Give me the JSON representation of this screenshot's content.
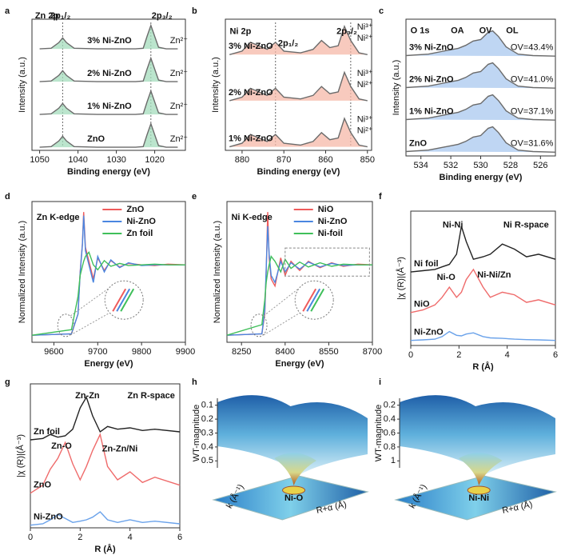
{
  "chart_data": [
    {
      "type": "line",
      "panel": "a",
      "xlabel": "Binding energy (eV)",
      "ylabel": "Intensity (a.u.)",
      "xlim": [
        1052,
        1012
      ],
      "xticks": [
        1050,
        1040,
        1030,
        1020
      ],
      "ylim": [
        0,
        4.2
      ],
      "reference_lines": [
        1044,
        1021
      ],
      "series_labels": "middle",
      "fill_color": "#a4dcbc",
      "x": [
        1050,
        1047,
        1045,
        1044,
        1043,
        1041,
        1035,
        1030,
        1025,
        1023,
        1022,
        1021,
        1020,
        1019,
        1017,
        1014
      ],
      "series": [
        {
          "name": "3% Ni-ZnO",
          "color": "#6b6b6b",
          "tags": [
            "Zn²⁺"
          ],
          "values": [
            3.25,
            3.27,
            3.45,
            3.6,
            3.45,
            3.27,
            3.25,
            3.25,
            3.25,
            3.27,
            3.65,
            4.0,
            3.65,
            3.3,
            3.25,
            3.25
          ]
        },
        {
          "name": "2% Ni-ZnO",
          "color": "#6b6b6b",
          "tags": [
            "Zn²⁺"
          ],
          "values": [
            2.2,
            2.22,
            2.4,
            2.55,
            2.4,
            2.22,
            2.2,
            2.2,
            2.2,
            2.22,
            2.6,
            2.95,
            2.6,
            2.25,
            2.2,
            2.2
          ]
        },
        {
          "name": "1% Ni-ZnO",
          "color": "#6b6b6b",
          "tags": [
            "Zn²⁺"
          ],
          "values": [
            1.15,
            1.17,
            1.35,
            1.5,
            1.35,
            1.17,
            1.15,
            1.15,
            1.15,
            1.17,
            1.55,
            1.9,
            1.55,
            1.2,
            1.15,
            1.15
          ]
        },
        {
          "name": "ZnO",
          "color": "#6b6b6b",
          "tags": [
            "Zn²⁺"
          ],
          "values": [
            0.1,
            0.12,
            0.3,
            0.45,
            0.3,
            0.12,
            0.1,
            0.1,
            0.1,
            0.12,
            0.5,
            0.85,
            0.5,
            0.15,
            0.1,
            0.1
          ]
        }
      ],
      "tag_color": "#4a7fd4",
      "annotations": [
        {
          "text": "Zn 2p",
          "color": "#000000"
        },
        {
          "text": "2p₁/₂",
          "color": "#000000"
        },
        {
          "text": "2p₃/₂",
          "color": "#000000"
        }
      ]
    },
    {
      "type": "line",
      "panel": "b",
      "xlabel": "Binding energy (eV)",
      "ylabel": "Intensity (a.u.)",
      "xlim": [
        884,
        849
      ],
      "xticks": [
        880,
        870,
        860,
        850
      ],
      "ylim": [
        0,
        3.7
      ],
      "reference_lines": [
        872,
        854
      ],
      "series_labels": "left",
      "fill_color": "#f5b8a8",
      "x": [
        883,
        880,
        878,
        876,
        874,
        872,
        870,
        866,
        863,
        861,
        859,
        857,
        855.5,
        854,
        852,
        850
      ],
      "series": [
        {
          "name": "3% Ni-ZnO",
          "color": "#6b6b6b",
          "tags": [
            "Ni³⁺",
            "Ni²⁺"
          ],
          "values": [
            2.7,
            2.8,
            3.05,
            2.95,
            2.85,
            3.05,
            2.8,
            2.75,
            2.85,
            3.1,
            2.9,
            2.95,
            3.5,
            3.1,
            2.75,
            2.7
          ]
        },
        {
          "name": "2% Ni-ZnO",
          "color": "#6b6b6b",
          "tags": [
            "Ni³⁺",
            "Ni²⁺"
          ],
          "values": [
            1.4,
            1.5,
            1.75,
            1.65,
            1.55,
            1.75,
            1.5,
            1.45,
            1.55,
            1.8,
            1.6,
            1.65,
            2.2,
            1.8,
            1.45,
            1.4
          ]
        },
        {
          "name": "1% Ni-ZnO",
          "color": "#6b6b6b",
          "tags": [
            "Ni³⁺",
            "Ni²⁺"
          ],
          "values": [
            0.1,
            0.2,
            0.45,
            0.35,
            0.25,
            0.45,
            0.2,
            0.15,
            0.25,
            0.5,
            0.3,
            0.35,
            0.9,
            0.5,
            0.15,
            0.1
          ]
        }
      ],
      "tag_color": "#e0453a",
      "annotations": [
        {
          "text": "Ni 2p",
          "color": "#000000"
        },
        {
          "text": "2p₁/₂",
          "color": "#000000"
        },
        {
          "text": "2p₃/₂",
          "color": "#000000"
        }
      ]
    },
    {
      "type": "line",
      "panel": "c",
      "xlabel": "Binding energy (eV)",
      "ylabel": "Intensity (a.u.)",
      "xlim": [
        535,
        525
      ],
      "xticks": [
        534,
        532,
        530,
        528,
        526
      ],
      "ylim": [
        -0.1,
        4.6
      ],
      "series_labels": "left",
      "fill_color": "#a9c8ef",
      "x": [
        535,
        533.5,
        532.5,
        532,
        531.5,
        531,
        530.5,
        530,
        529.5,
        529.2,
        528.8,
        528.3,
        527.5,
        526.5,
        525
      ],
      "series": [
        {
          "name": "3% Ni-ZnO",
          "color": "#6b6b6b",
          "tags": [
            "OV=43.4%"
          ],
          "values": [
            3.35,
            3.4,
            3.5,
            3.55,
            3.6,
            3.7,
            3.85,
            3.9,
            4.15,
            4.2,
            4.0,
            3.65,
            3.4,
            3.35,
            3.33
          ]
        },
        {
          "name": "2% Ni-ZnO",
          "color": "#6b6b6b",
          "tags": [
            "OV=41.0%"
          ],
          "values": [
            2.25,
            2.3,
            2.4,
            2.45,
            2.5,
            2.6,
            2.75,
            2.8,
            3.05,
            3.1,
            2.9,
            2.55,
            2.3,
            2.25,
            2.23
          ]
        },
        {
          "name": "1% Ni-ZnO",
          "color": "#6b6b6b",
          "tags": [
            "OV=37.1%"
          ],
          "values": [
            1.15,
            1.2,
            1.3,
            1.35,
            1.4,
            1.5,
            1.65,
            1.7,
            1.95,
            2.0,
            1.8,
            1.45,
            1.2,
            1.15,
            1.13
          ]
        },
        {
          "name": "ZnO",
          "color": "#6b6b6b",
          "tags": [
            "OV=31.6%"
          ],
          "values": [
            0.05,
            0.1,
            0.2,
            0.25,
            0.3,
            0.4,
            0.55,
            0.6,
            0.85,
            0.9,
            0.7,
            0.35,
            0.1,
            0.05,
            0.03
          ]
        }
      ],
      "tag_color": "#3aa35a",
      "annotations": [
        {
          "text": "O 1s",
          "color": "#000000"
        },
        {
          "text": "OA",
          "color": "#000000"
        },
        {
          "text": "OV",
          "color": "#000000"
        },
        {
          "text": "OL",
          "color": "#000000"
        }
      ]
    },
    {
      "type": "line",
      "panel": "d",
      "xlabel": "Energy (eV)",
      "ylabel": "Normalized Intensity (a.u.)",
      "xlim": [
        9550,
        9900
      ],
      "xticks": [
        9600,
        9700,
        9800,
        9900
      ],
      "ylim": [
        -0.1,
        1.9
      ],
      "legend": "upper right",
      "x": [
        9550,
        9640,
        9655,
        9660,
        9665,
        9668,
        9672,
        9680,
        9690,
        9700,
        9715,
        9730,
        9750,
        9770,
        9800,
        9830,
        9860,
        9900
      ],
      "series": [
        {
          "name": "ZnO",
          "color": "#ef5b5b",
          "values": [
            0,
            0.02,
            0.3,
            0.9,
            1.3,
            1.75,
            1.25,
            1.05,
            0.8,
            1.1,
            0.92,
            1.06,
            0.97,
            1.02,
            1.0,
            0.99,
            1.01,
            1.0
          ]
        },
        {
          "name": "Ni-ZnO",
          "color": "#4a86e0",
          "values": [
            0,
            0.02,
            0.3,
            0.88,
            1.28,
            1.7,
            1.2,
            1.0,
            0.75,
            1.12,
            0.9,
            1.07,
            0.96,
            1.03,
            0.99,
            1.0,
            1.0,
            1.0
          ]
        },
        {
          "name": "Zn foil",
          "color": "#3fbf5a",
          "values": [
            0,
            0.08,
            0.55,
            0.85,
            0.98,
            1.05,
            1.12,
            1.18,
            1.0,
            0.93,
            1.06,
            0.98,
            1.02,
            0.99,
            1.0,
            1.01,
            1.0,
            1.0
          ]
        }
      ],
      "annotations": [
        {
          "text": "Zn K-edge",
          "color": "#000000"
        }
      ]
    },
    {
      "type": "line",
      "panel": "e",
      "xlabel": "Energy (eV)",
      "ylabel": "Normalized Intensity (a.u.)",
      "xlim": [
        8200,
        8700
      ],
      "xticks": [
        8250,
        8400,
        8550,
        8700
      ],
      "ylim": [
        -0.1,
        1.9
      ],
      "legend": "upper right",
      "x": [
        8200,
        8320,
        8330,
        8335,
        8340,
        8345,
        8352,
        8365,
        8385,
        8400,
        8420,
        8450,
        8480,
        8520,
        8560,
        8600,
        8650,
        8700
      ],
      "series": [
        {
          "name": "NiO",
          "color": "#ef5b5b",
          "values": [
            0,
            0.02,
            0.3,
            0.9,
            1.75,
            1.1,
            0.8,
            0.7,
            1.1,
            0.85,
            1.05,
            0.92,
            1.05,
            0.96,
            1.03,
            0.98,
            1.01,
            1.0
          ]
        },
        {
          "name": "Ni-ZnO",
          "color": "#4a86e0",
          "values": [
            0,
            0.02,
            0.35,
            0.95,
            1.55,
            1.15,
            0.85,
            0.75,
            1.05,
            0.9,
            1.03,
            0.94,
            1.04,
            0.97,
            1.02,
            0.99,
            1.0,
            1.0
          ]
        },
        {
          "name": "Ni-foil",
          "color": "#3fbf5a",
          "values": [
            0,
            0.15,
            0.5,
            0.75,
            0.9,
            1.0,
            1.12,
            1.05,
            0.9,
            1.08,
            0.95,
            1.04,
            0.97,
            1.03,
            0.98,
            1.01,
            1.0,
            1.0
          ]
        }
      ],
      "annotations": [
        {
          "text": "Ni K-edge",
          "color": "#000000"
        }
      ]
    },
    {
      "type": "line",
      "panel": "f",
      "xlabel": "R (Å)",
      "ylabel": "|χ (R)|(Å⁻³)",
      "xlim": [
        0,
        6
      ],
      "xticks": [
        0,
        2,
        4,
        6
      ],
      "ylim": [
        -0.1,
        5.2
      ],
      "series_labels": "left",
      "x": [
        0,
        0.5,
        1,
        1.3,
        1.6,
        1.9,
        2.1,
        2.3,
        2.6,
        3,
        3.3,
        3.8,
        4.3,
        4.8,
        5.3,
        6
      ],
      "series": [
        {
          "name": "Ni foil",
          "color": "#222222",
          "values": [
            2.8,
            2.85,
            2.9,
            3.0,
            3.1,
            3.5,
            4.6,
            4.0,
            3.3,
            3.4,
            3.5,
            3.9,
            3.7,
            3.4,
            3.5,
            3.3
          ]
        },
        {
          "name": "NiO",
          "color": "#ef6b6b",
          "values": [
            1.2,
            1.3,
            1.5,
            1.8,
            2.2,
            1.8,
            2.0,
            2.5,
            2.9,
            2.2,
            1.8,
            2.0,
            1.9,
            1.6,
            1.7,
            1.5
          ]
        },
        {
          "name": "Ni-ZnO",
          "color": "#6aa2ea",
          "values": [
            0.1,
            0.12,
            0.15,
            0.25,
            0.45,
            0.3,
            0.28,
            0.35,
            0.4,
            0.25,
            0.2,
            0.18,
            0.15,
            0.13,
            0.12,
            0.1
          ]
        }
      ],
      "annotations": [
        {
          "text": "Ni-Ni",
          "color": "#000000"
        },
        {
          "text": "Ni R-space",
          "color": "#000000"
        },
        {
          "text": "Ni-O",
          "color": "#e0453a"
        },
        {
          "text": "Ni-Ni/Zn",
          "color": "#4a86e0"
        }
      ]
    },
    {
      "type": "line",
      "panel": "g",
      "xlabel": "R (Å)",
      "ylabel": "|χ (R)|(Å⁻³)",
      "xlim": [
        0,
        6
      ],
      "xticks": [
        0,
        2,
        4,
        6
      ],
      "ylim": [
        0,
        5.4
      ],
      "series_labels": "left",
      "x": [
        0,
        0.5,
        0.8,
        1.1,
        1.4,
        1.7,
        2.0,
        2.25,
        2.5,
        2.8,
        3.1,
        3.5,
        4.0,
        4.5,
        5.0,
        6
      ],
      "series": [
        {
          "name": "Zn foil",
          "color": "#222222",
          "values": [
            3.3,
            3.35,
            3.5,
            3.4,
            3.45,
            3.7,
            4.5,
            4.9,
            4.2,
            3.6,
            3.8,
            3.7,
            3.75,
            3.65,
            3.7,
            3.6
          ]
        },
        {
          "name": "ZnO",
          "color": "#ef6b6b",
          "values": [
            1.3,
            1.6,
            2.2,
            2.6,
            3.2,
            2.4,
            1.8,
            2.3,
            2.9,
            3.5,
            2.3,
            1.8,
            2.1,
            1.7,
            1.9,
            1.6
          ]
        },
        {
          "name": "Ni-ZnO",
          "color": "#6aa2ea",
          "values": [
            0.1,
            0.15,
            0.3,
            0.5,
            0.35,
            0.2,
            0.25,
            0.3,
            0.4,
            0.6,
            0.3,
            0.2,
            0.3,
            0.2,
            0.25,
            0.15
          ]
        }
      ],
      "annotations": [
        {
          "text": "Zn-Zn",
          "color": "#000000"
        },
        {
          "text": "Zn R-space",
          "color": "#000000"
        },
        {
          "text": "Zn-O",
          "color": "#e0453a"
        },
        {
          "text": "Zn-Zn/Ni",
          "color": "#4a86e0"
        }
      ]
    },
    {
      "type": "surface",
      "panel": "h",
      "zlabel": "WT-magnitude",
      "xlabel": "R+α (Å)",
      "ylabel": "k (Å⁻¹)",
      "annotation": "Ni-O",
      "ylim": [
        0.55,
        0.05
      ],
      "yticks": [
        0.1,
        0.2,
        0.3,
        0.4,
        0.5
      ]
    },
    {
      "type": "surface",
      "panel": "i",
      "zlabel": "WT-magnitude",
      "xlabel": "R+α (Å)",
      "ylabel": "k (Å⁻¹)",
      "annotation": "Ni-Ni",
      "ylim": [
        1.1,
        0.1
      ],
      "yticks": [
        0.2,
        0.4,
        0.6,
        0.8,
        1.0
      ]
    }
  ]
}
